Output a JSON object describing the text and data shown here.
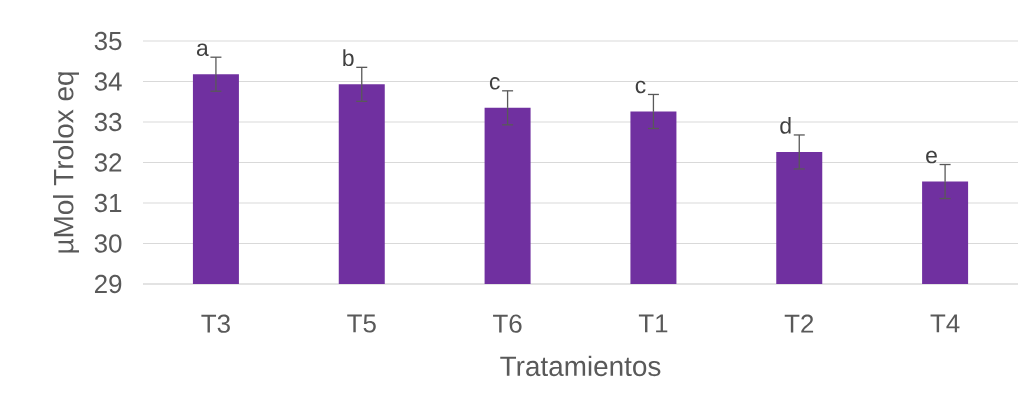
{
  "chart_data": {
    "type": "bar",
    "xlabel": "Tratamientos",
    "ylabel": "µMol Trolox eq",
    "categories": [
      "T3",
      "T5",
      "T6",
      "T1",
      "T2",
      "T4"
    ],
    "values": [
      34.18,
      33.93,
      33.35,
      33.26,
      32.26,
      31.53
    ],
    "errors": [
      0.42,
      0.42,
      0.42,
      0.42,
      0.42,
      0.42
    ],
    "color": "#7030a0",
    "ylim": [
      29,
      35
    ],
    "yticks": [
      29,
      30,
      31,
      32,
      33,
      34,
      35
    ],
    "grid": "y",
    "annotations": [
      {
        "text": "a",
        "x": "T3",
        "y": 34.6
      },
      {
        "text": "b",
        "x": "T5",
        "y": 34.35
      },
      {
        "text": "c",
        "x": "T6",
        "y": 33.77
      },
      {
        "text": "c",
        "x": "T1",
        "y": 33.68
      },
      {
        "text": "d",
        "x": "T2",
        "y": 32.68
      },
      {
        "text": "e",
        "x": "T4",
        "y": 31.95
      }
    ]
  }
}
